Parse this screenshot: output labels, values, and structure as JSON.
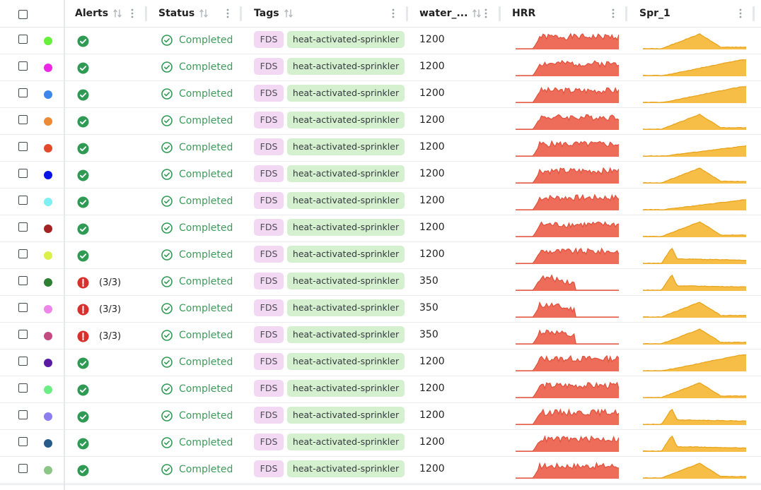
{
  "table": {
    "columns": {
      "alerts": "Alerts",
      "status": "Status",
      "tags": "Tags",
      "water": "water_...",
      "hrr": "HRR",
      "spr": "Spr_1"
    },
    "icons": {
      "select_all": "checkbox-icon",
      "sort": "sort-arrows-icon",
      "menu": "kebab-menu-icon",
      "alert_ok": "check-circle-filled-icon",
      "alert_warn": "exclamation-circle-filled-icon",
      "status_completed": "check-circle-outline-icon"
    },
    "colors": {
      "alert_ok": "#2f9a54",
      "alert_warn": "#d9302c",
      "status_text": "#3f9a5b",
      "tag_fds_bg": "#f3d8f3",
      "tag_sprinkler_bg": "#d4f0cf",
      "hrr_fill": "#ee6d5a",
      "hrr_stroke": "#e0533f",
      "spr_fill": "#f6bd47",
      "spr_stroke": "#e9a51e"
    },
    "rows": [
      {
        "color": "#66f03c",
        "alert": "ok",
        "alert_count": "",
        "status": "Completed",
        "tags": [
          "FDS",
          "heat-activated-sprinkler"
        ],
        "water": "1200",
        "hrr_type": "long",
        "hrr_seed": 1,
        "spr_type": "hump",
        "spr_seed": 1
      },
      {
        "color": "#ea28e6",
        "alert": "ok",
        "alert_count": "",
        "status": "Completed",
        "tags": [
          "FDS",
          "heat-activated-sprinkler"
        ],
        "water": "1200",
        "hrr_type": "long",
        "hrr_seed": 2,
        "spr_type": "rising",
        "spr_seed": 2
      },
      {
        "color": "#3d86ea",
        "alert": "ok",
        "alert_count": "",
        "status": "Completed",
        "tags": [
          "FDS",
          "heat-activated-sprinkler"
        ],
        "water": "1200",
        "hrr_type": "long",
        "hrr_seed": 3,
        "spr_type": "rising",
        "spr_seed": 3
      },
      {
        "color": "#ed8a36",
        "alert": "ok",
        "alert_count": "",
        "status": "Completed",
        "tags": [
          "FDS",
          "heat-activated-sprinkler"
        ],
        "water": "1200",
        "hrr_type": "long",
        "hrr_seed": 4,
        "spr_type": "hump",
        "spr_seed": 4
      },
      {
        "color": "#e24a2a",
        "alert": "ok",
        "alert_count": "",
        "status": "Completed",
        "tags": [
          "FDS",
          "heat-activated-sprinkler"
        ],
        "water": "1200",
        "hrr_type": "long",
        "hrr_seed": 5,
        "spr_type": "slow",
        "spr_seed": 5
      },
      {
        "color": "#0a14e6",
        "alert": "ok",
        "alert_count": "",
        "status": "Completed",
        "tags": [
          "FDS",
          "heat-activated-sprinkler"
        ],
        "water": "1200",
        "hrr_type": "long",
        "hrr_seed": 6,
        "spr_type": "hump",
        "spr_seed": 6
      },
      {
        "color": "#7ef0f3",
        "alert": "ok",
        "alert_count": "",
        "status": "Completed",
        "tags": [
          "FDS",
          "heat-activated-sprinkler"
        ],
        "water": "1200",
        "hrr_type": "long",
        "hrr_seed": 7,
        "spr_type": "slow",
        "spr_seed": 7
      },
      {
        "color": "#a52222",
        "alert": "ok",
        "alert_count": "",
        "status": "Completed",
        "tags": [
          "FDS",
          "heat-activated-sprinkler"
        ],
        "water": "1200",
        "hrr_type": "long",
        "hrr_seed": 8,
        "spr_type": "hump",
        "spr_seed": 8
      },
      {
        "color": "#dcf04a",
        "alert": "ok",
        "alert_count": "",
        "status": "Completed",
        "tags": [
          "FDS",
          "heat-activated-sprinkler"
        ],
        "water": "1200",
        "hrr_type": "long",
        "hrr_seed": 9,
        "spr_type": "spike",
        "spr_seed": 9
      },
      {
        "color": "#2d7f32",
        "alert": "warn",
        "alert_count": "(3/3)",
        "status": "Completed",
        "tags": [
          "FDS",
          "heat-activated-sprinkler"
        ],
        "water": "350",
        "hrr_type": "short",
        "hrr_seed": 10,
        "spr_type": "spike",
        "spr_seed": 10
      },
      {
        "color": "#ee86ea",
        "alert": "warn",
        "alert_count": "(3/3)",
        "status": "Completed",
        "tags": [
          "FDS",
          "heat-activated-sprinkler"
        ],
        "water": "350",
        "hrr_type": "short",
        "hrr_seed": 11,
        "spr_type": "hump",
        "spr_seed": 11
      },
      {
        "color": "#c44a82",
        "alert": "warn",
        "alert_count": "(3/3)",
        "status": "Completed",
        "tags": [
          "FDS",
          "heat-activated-sprinkler"
        ],
        "water": "350",
        "hrr_type": "short",
        "hrr_seed": 12,
        "spr_type": "hump",
        "spr_seed": 12
      },
      {
        "color": "#5a1aa3",
        "alert": "ok",
        "alert_count": "",
        "status": "Completed",
        "tags": [
          "FDS",
          "heat-activated-sprinkler"
        ],
        "water": "1200",
        "hrr_type": "long",
        "hrr_seed": 13,
        "spr_type": "rising",
        "spr_seed": 13
      },
      {
        "color": "#6cee86",
        "alert": "ok",
        "alert_count": "",
        "status": "Completed",
        "tags": [
          "FDS",
          "heat-activated-sprinkler"
        ],
        "water": "1200",
        "hrr_type": "long",
        "hrr_seed": 14,
        "spr_type": "hump",
        "spr_seed": 14
      },
      {
        "color": "#8c7eee",
        "alert": "ok",
        "alert_count": "",
        "status": "Completed",
        "tags": [
          "FDS",
          "heat-activated-sprinkler"
        ],
        "water": "1200",
        "hrr_type": "long",
        "hrr_seed": 15,
        "spr_type": "spike",
        "spr_seed": 15
      },
      {
        "color": "#285a8a",
        "alert": "ok",
        "alert_count": "",
        "status": "Completed",
        "tags": [
          "FDS",
          "heat-activated-sprinkler"
        ],
        "water": "1200",
        "hrr_type": "long",
        "hrr_seed": 16,
        "spr_type": "spike",
        "spr_seed": 16
      },
      {
        "color": "#8cc686",
        "alert": "ok",
        "alert_count": "",
        "status": "Completed",
        "tags": [
          "FDS",
          "heat-activated-sprinkler"
        ],
        "water": "1200",
        "hrr_type": "long",
        "hrr_seed": 17,
        "spr_type": "hump",
        "spr_seed": 17
      }
    ]
  }
}
